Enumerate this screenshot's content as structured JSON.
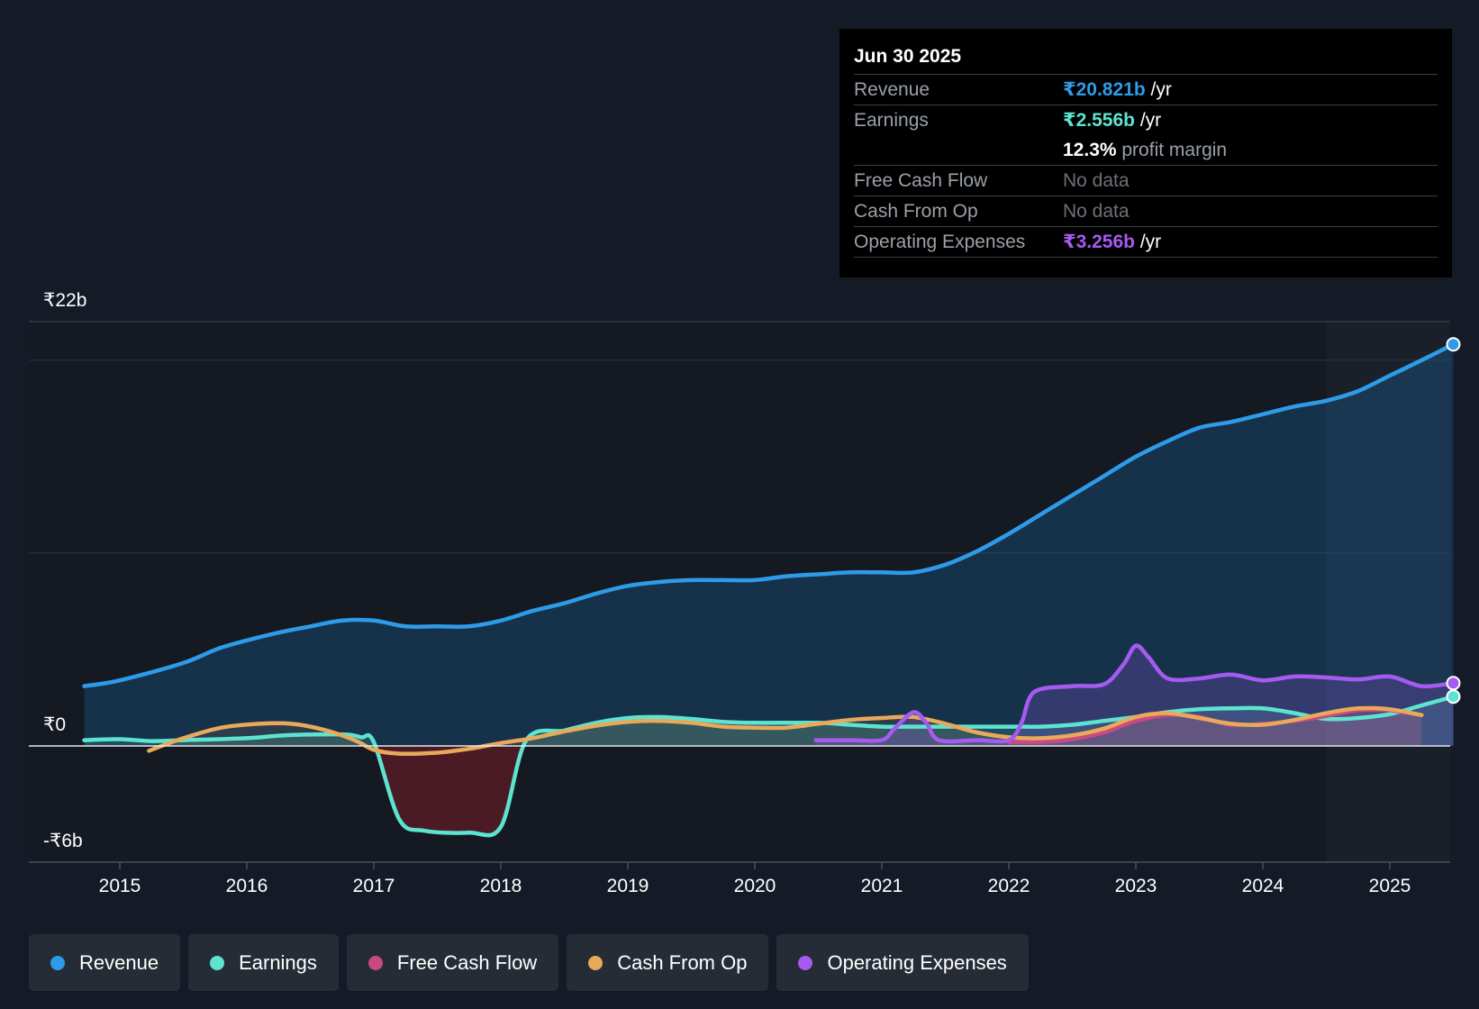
{
  "chart_data": {
    "type": "line",
    "title": "",
    "y_unit": "₹ billions",
    "ylim": [
      -6,
      22
    ],
    "y_tick_labels": [
      "₹22b",
      "₹0",
      "-₹6b"
    ],
    "x_tick_labels": [
      "2015",
      "2016",
      "2017",
      "2018",
      "2019",
      "2020",
      "2021",
      "2022",
      "2023",
      "2024",
      "2025"
    ],
    "xlim": [
      2014.25,
      2025.5
    ],
    "forecast_shade_start": 2024.5,
    "series": [
      {
        "name": "Revenue",
        "color": "#2e9be8",
        "points": [
          [
            2014.72,
            3.1
          ],
          [
            2015.0,
            3.4
          ],
          [
            2015.5,
            4.3
          ],
          [
            2015.8,
            5.1
          ],
          [
            2016.2,
            5.8
          ],
          [
            2016.5,
            6.2
          ],
          [
            2016.75,
            6.5
          ],
          [
            2017.0,
            6.5
          ],
          [
            2017.25,
            6.2
          ],
          [
            2017.5,
            6.2
          ],
          [
            2017.75,
            6.2
          ],
          [
            2018.0,
            6.5
          ],
          [
            2018.25,
            7.0
          ],
          [
            2018.5,
            7.4
          ],
          [
            2018.75,
            7.9
          ],
          [
            2019.0,
            8.3
          ],
          [
            2019.25,
            8.5
          ],
          [
            2019.5,
            8.6
          ],
          [
            2019.75,
            8.6
          ],
          [
            2020.0,
            8.6
          ],
          [
            2020.25,
            8.8
          ],
          [
            2020.5,
            8.9
          ],
          [
            2020.75,
            9.0
          ],
          [
            2021.0,
            9.0
          ],
          [
            2021.25,
            9.0
          ],
          [
            2021.5,
            9.4
          ],
          [
            2021.75,
            10.1
          ],
          [
            2022.0,
            11.0
          ],
          [
            2022.25,
            12.0
          ],
          [
            2022.5,
            13.0
          ],
          [
            2022.75,
            14.0
          ],
          [
            2023.0,
            15.0
          ],
          [
            2023.25,
            15.8
          ],
          [
            2023.5,
            16.5
          ],
          [
            2023.75,
            16.8
          ],
          [
            2024.0,
            17.2
          ],
          [
            2024.25,
            17.6
          ],
          [
            2024.5,
            17.9
          ],
          [
            2024.75,
            18.4
          ],
          [
            2025.0,
            19.2
          ],
          [
            2025.25,
            20.0
          ],
          [
            2025.5,
            20.821
          ]
        ]
      },
      {
        "name": "Earnings",
        "color": "#5de4d0",
        "points": [
          [
            2014.72,
            0.3
          ],
          [
            2015.0,
            0.35
          ],
          [
            2015.25,
            0.25
          ],
          [
            2015.5,
            0.3
          ],
          [
            2016.0,
            0.4
          ],
          [
            2016.3,
            0.55
          ],
          [
            2016.75,
            0.6
          ],
          [
            2016.9,
            0.45
          ],
          [
            2017.0,
            0.2
          ],
          [
            2017.2,
            -3.8
          ],
          [
            2017.4,
            -4.4
          ],
          [
            2017.75,
            -4.5
          ],
          [
            2018.0,
            -4.2
          ],
          [
            2018.2,
            0.3
          ],
          [
            2018.5,
            0.8
          ],
          [
            2018.75,
            1.2
          ],
          [
            2019.0,
            1.45
          ],
          [
            2019.25,
            1.5
          ],
          [
            2019.5,
            1.4
          ],
          [
            2019.75,
            1.25
          ],
          [
            2020.0,
            1.2
          ],
          [
            2020.5,
            1.2
          ],
          [
            2020.75,
            1.1
          ],
          [
            2021.0,
            1.0
          ],
          [
            2021.25,
            1.0
          ],
          [
            2021.5,
            1.0
          ],
          [
            2022.0,
            1.0
          ],
          [
            2022.25,
            1.0
          ],
          [
            2022.5,
            1.1
          ],
          [
            2022.75,
            1.3
          ],
          [
            2023.0,
            1.5
          ],
          [
            2023.25,
            1.75
          ],
          [
            2023.5,
            1.9
          ],
          [
            2023.75,
            1.95
          ],
          [
            2024.0,
            1.95
          ],
          [
            2024.25,
            1.7
          ],
          [
            2024.5,
            1.4
          ],
          [
            2024.75,
            1.45
          ],
          [
            2025.0,
            1.65
          ],
          [
            2025.25,
            2.1
          ],
          [
            2025.5,
            2.556
          ]
        ]
      },
      {
        "name": "Free Cash Flow",
        "color": "#c94a80",
        "points": [
          [
            2022.0,
            0.2
          ],
          [
            2022.25,
            0.2
          ],
          [
            2022.5,
            0.35
          ],
          [
            2022.75,
            0.7
          ],
          [
            2023.0,
            1.3
          ],
          [
            2023.25,
            1.6
          ],
          [
            2023.5,
            1.5
          ],
          [
            2023.75,
            1.1
          ],
          [
            2024.0,
            1.15
          ],
          [
            2024.25,
            1.3
          ],
          [
            2024.5,
            1.55
          ],
          [
            2024.75,
            1.85
          ],
          [
            2025.0,
            1.85
          ],
          [
            2025.25,
            1.6
          ]
        ]
      },
      {
        "name": "Cash From Op",
        "color": "#e9a95a",
        "points": [
          [
            2015.23,
            -0.25
          ],
          [
            2015.5,
            0.4
          ],
          [
            2015.8,
            0.95
          ],
          [
            2016.1,
            1.15
          ],
          [
            2016.35,
            1.15
          ],
          [
            2016.6,
            0.85
          ],
          [
            2016.85,
            0.3
          ],
          [
            2017.0,
            -0.2
          ],
          [
            2017.2,
            -0.4
          ],
          [
            2017.5,
            -0.35
          ],
          [
            2017.75,
            -0.15
          ],
          [
            2018.0,
            0.15
          ],
          [
            2018.25,
            0.4
          ],
          [
            2018.5,
            0.75
          ],
          [
            2018.75,
            1.05
          ],
          [
            2019.0,
            1.25
          ],
          [
            2019.25,
            1.3
          ],
          [
            2019.5,
            1.2
          ],
          [
            2019.75,
            1.0
          ],
          [
            2020.0,
            0.95
          ],
          [
            2020.25,
            0.95
          ],
          [
            2020.5,
            1.15
          ],
          [
            2020.75,
            1.35
          ],
          [
            2021.0,
            1.45
          ],
          [
            2021.25,
            1.5
          ],
          [
            2021.5,
            1.15
          ],
          [
            2021.75,
            0.7
          ],
          [
            2022.0,
            0.45
          ],
          [
            2022.25,
            0.4
          ],
          [
            2022.5,
            0.55
          ],
          [
            2022.75,
            0.9
          ],
          [
            2023.0,
            1.5
          ],
          [
            2023.25,
            1.7
          ],
          [
            2023.5,
            1.45
          ],
          [
            2023.75,
            1.15
          ],
          [
            2024.0,
            1.1
          ],
          [
            2024.25,
            1.35
          ],
          [
            2024.5,
            1.7
          ],
          [
            2024.75,
            1.95
          ],
          [
            2025.0,
            1.9
          ],
          [
            2025.25,
            1.6
          ]
        ]
      },
      {
        "name": "Operating Expenses",
        "color": "#a55bf0",
        "points": [
          [
            2020.48,
            0.3
          ],
          [
            2020.75,
            0.3
          ],
          [
            2021.0,
            0.3
          ],
          [
            2021.1,
            0.9
          ],
          [
            2021.25,
            1.75
          ],
          [
            2021.35,
            1.2
          ],
          [
            2021.45,
            0.3
          ],
          [
            2021.75,
            0.3
          ],
          [
            2022.0,
            0.3
          ],
          [
            2022.1,
            1.2
          ],
          [
            2022.2,
            2.8
          ],
          [
            2022.5,
            3.1
          ],
          [
            2022.75,
            3.2
          ],
          [
            2022.9,
            4.2
          ],
          [
            2023.0,
            5.2
          ],
          [
            2023.1,
            4.6
          ],
          [
            2023.25,
            3.5
          ],
          [
            2023.5,
            3.5
          ],
          [
            2023.75,
            3.7
          ],
          [
            2024.0,
            3.4
          ],
          [
            2024.25,
            3.6
          ],
          [
            2024.5,
            3.55
          ],
          [
            2024.75,
            3.45
          ],
          [
            2025.0,
            3.6
          ],
          [
            2025.25,
            3.1
          ],
          [
            2025.5,
            3.256
          ]
        ]
      }
    ]
  },
  "tooltip": {
    "date": "Jun 30 2025",
    "revenue_label": "Revenue",
    "revenue_value": "₹20.821b",
    "revenue_unit": " /yr",
    "earnings_label": "Earnings",
    "earnings_value": "₹2.556b",
    "earnings_unit": " /yr",
    "margin_value": "12.3%",
    "margin_label": " profit margin",
    "fcf_label": "Free Cash Flow",
    "fcf_value": "No data",
    "cfo_label": "Cash From Op",
    "cfo_value": "No data",
    "opex_label": "Operating Expenses",
    "opex_value": "₹3.256b",
    "opex_unit": " /yr"
  },
  "legend": [
    {
      "label": "Revenue",
      "color": "#2e9be8"
    },
    {
      "label": "Earnings",
      "color": "#5de4d0"
    },
    {
      "label": "Free Cash Flow",
      "color": "#c94a80"
    },
    {
      "label": "Cash From Op",
      "color": "#e9a95a"
    },
    {
      "label": "Operating Expenses",
      "color": "#a55bf0"
    }
  ]
}
